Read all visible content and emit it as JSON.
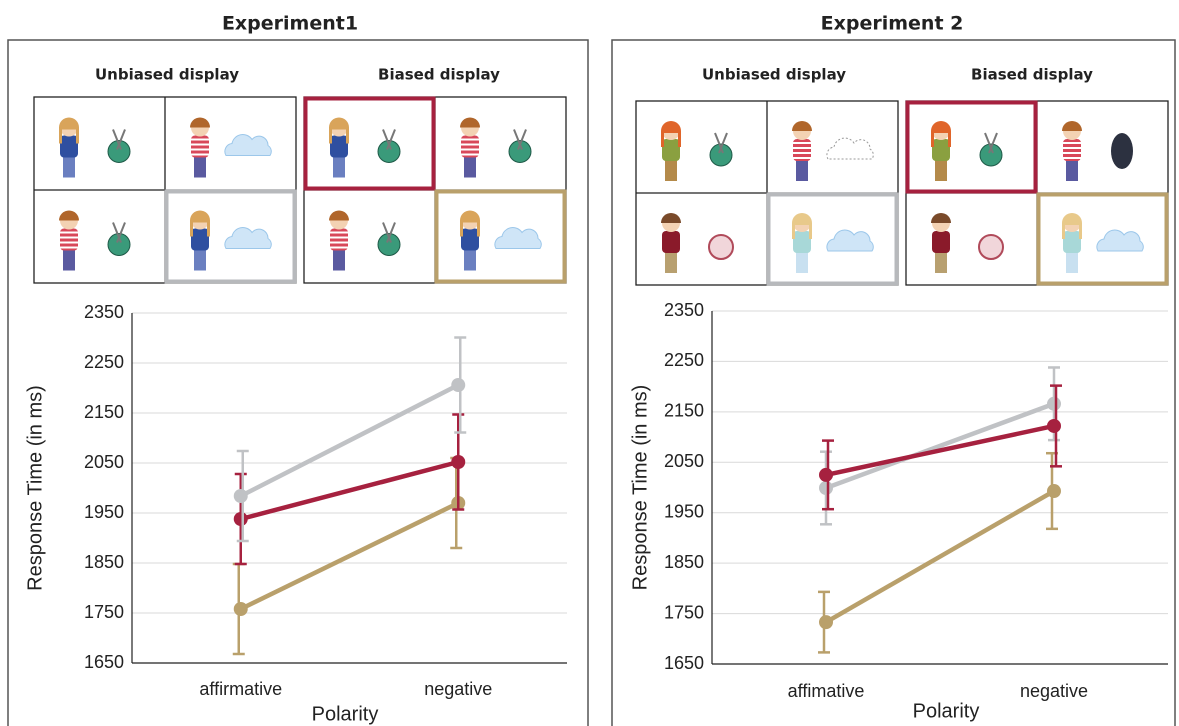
{
  "chart_data": [
    {
      "type": "line",
      "title": "Experiment1",
      "display_labels": [
        "Unbiased display",
        "Biased display"
      ],
      "y_label": "Response Time (in ms)",
      "x_label": "Polarity",
      "categories": [
        "affirmative",
        "negative"
      ],
      "ylim": [
        1650,
        2350
      ],
      "yticks": [
        1650,
        1750,
        1850,
        1950,
        2050,
        2150,
        2250,
        2350
      ],
      "grid": true,
      "series": [
        {
          "color": "#b9a06b",
          "values": [
            1758,
            1970
          ],
          "errors": [
            90,
            90
          ]
        },
        {
          "color": "#a6213f",
          "values": [
            1938,
            2052
          ],
          "errors": [
            90,
            95
          ]
        },
        {
          "color": "#c0c2c5",
          "values": [
            1984,
            2206
          ],
          "errors": [
            90,
            95
          ]
        }
      ]
    },
    {
      "type": "line",
      "title": "Experiment 2",
      "display_labels": [
        "Unbiased display",
        "Biased display"
      ],
      "y_label": "Response Time (in ms)",
      "x_label": "Polarity",
      "categories": [
        "affimative",
        "negative"
      ],
      "ylim": [
        1650,
        2350
      ],
      "yticks": [
        1650,
        1750,
        1850,
        1950,
        2050,
        2150,
        2250,
        2350
      ],
      "grid": true,
      "series": [
        {
          "color": "#b9a06b",
          "values": [
            1733,
            1993
          ],
          "errors": [
            60,
            75
          ]
        },
        {
          "color": "#c0c2c5",
          "values": [
            1999,
            2166
          ],
          "errors": [
            72,
            72
          ]
        },
        {
          "color": "#a6213f",
          "values": [
            2025,
            2122
          ],
          "errors": [
            68,
            80
          ]
        }
      ]
    }
  ]
}
